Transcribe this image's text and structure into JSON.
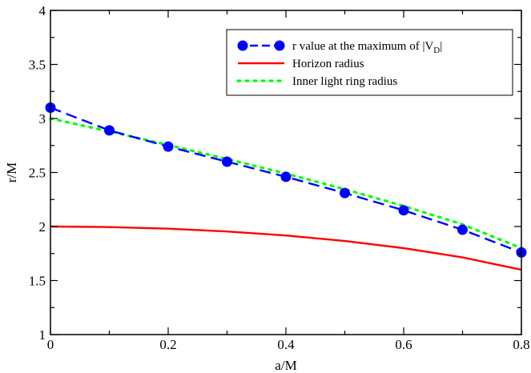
{
  "chart_data": {
    "type": "line",
    "title": "",
    "xlabel": "a/M",
    "ylabel": "r/M",
    "xlim": [
      0,
      0.8
    ],
    "ylim": [
      1,
      4
    ],
    "xticks": [
      0,
      0.2,
      0.4,
      0.6,
      0.8
    ],
    "xtick_labels": [
      "0",
      "0.2",
      "0.4",
      "0.6",
      "0.8"
    ],
    "yticks": [
      1,
      1.5,
      2,
      2.5,
      3,
      3.5,
      4
    ],
    "ytick_labels": [
      "1",
      "1.5",
      "2",
      "2.5",
      "3",
      "3.5",
      "4"
    ],
    "grid": false,
    "legend_position": "top-right",
    "series": [
      {
        "name": "r value at the maximum of |V",
        "name_subscript": "D",
        "name_suffix": "|",
        "color": "#0000ff",
        "style": "dashed-with-circles",
        "x": [
          0,
          0.1,
          0.2,
          0.3,
          0.4,
          0.5,
          0.6,
          0.7,
          0.8
        ],
        "y": [
          3.1,
          2.89,
          2.74,
          2.6,
          2.46,
          2.31,
          2.15,
          1.97,
          1.76
        ]
      },
      {
        "name": "Horizon radius",
        "color": "#ff0000",
        "style": "solid",
        "x": [
          0,
          0.1,
          0.2,
          0.3,
          0.4,
          0.5,
          0.6,
          0.7,
          0.8
        ],
        "y": [
          2.0,
          1.995,
          1.98,
          1.954,
          1.917,
          1.866,
          1.8,
          1.714,
          1.6
        ]
      },
      {
        "name": "Inner light ring radius",
        "color": "#00ff00",
        "style": "dotted",
        "x": [
          0,
          0.1,
          0.2,
          0.3,
          0.4,
          0.5,
          0.6,
          0.7,
          0.8
        ],
        "y": [
          3.0,
          2.88,
          2.755,
          2.625,
          2.49,
          2.345,
          2.19,
          2.02,
          1.8
        ]
      }
    ]
  }
}
